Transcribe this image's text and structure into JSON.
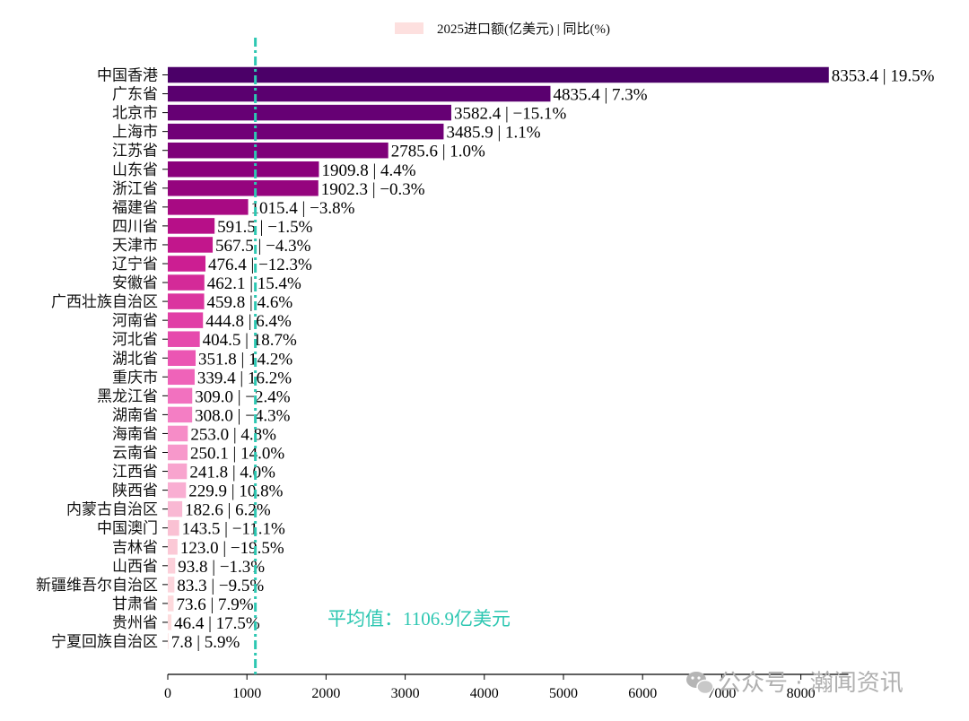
{
  "chart_data": {
    "type": "bar",
    "orientation": "horizontal",
    "title": "",
    "xlabel": "",
    "ylabel": "",
    "legend": {
      "label": "2025进口额(亿美元) | 同比(%)",
      "position": "top-center"
    },
    "xlim": [
      0,
      8600
    ],
    "xticks": [
      0,
      1000,
      2000,
      3000,
      4000,
      5000,
      6000,
      7000,
      8000
    ],
    "grid": false,
    "categories": [
      "中国香港",
      "广东省",
      "北京市",
      "上海市",
      "江苏省",
      "山东省",
      "浙江省",
      "福建省",
      "四川省",
      "天津市",
      "辽宁省",
      "安徽省",
      "广西壮族自治区",
      "河南省",
      "河北省",
      "湖北省",
      "重庆市",
      "黑龙江省",
      "湖南省",
      "海南省",
      "云南省",
      "江西省",
      "陕西省",
      "内蒙古自治区",
      "中国澳门",
      "吉林省",
      "山西省",
      "新疆维吾尔自治区",
      "甘肃省",
      "贵州省",
      "宁夏回族自治区"
    ],
    "values": [
      8353.4,
      4835.4,
      3582.4,
      3485.9,
      2785.6,
      1909.8,
      1902.3,
      1015.4,
      591.5,
      567.5,
      476.4,
      462.1,
      459.8,
      444.8,
      404.5,
      351.8,
      339.4,
      309.0,
      308.0,
      253.0,
      250.1,
      241.8,
      229.9,
      182.6,
      143.5,
      123.0,
      93.8,
      83.3,
      73.6,
      46.4,
      7.8
    ],
    "value_labels": [
      "8353.4 | 19.5%",
      "4835.4 | 7.3%",
      "3582.4 | −15.1%",
      "3485.9 | 1.1%",
      "2785.6 | 1.0%",
      "1909.8 | 4.4%",
      "1902.3 | −0.3%",
      "1015.4 | −3.8%",
      "591.5 | −1.5%",
      "567.5 | −4.3%",
      "476.4 | −12.3%",
      "462.1 | 15.4%",
      "459.8 | 4.6%",
      "444.8 | 6.4%",
      "404.5 | 18.7%",
      "351.8 | 14.2%",
      "339.4 | 16.2%",
      "309.0 | −2.4%",
      "308.0 | −4.3%",
      "253.0 | 4.8%",
      "250.1 | 14.0%",
      "241.8 | 4.0%",
      "229.9 | 10.8%",
      "182.6 | 6.2%",
      "143.5 | −11.1%",
      "123.0 | −19.5%",
      "93.8 | −1.3%",
      "83.3 | −9.5%",
      "73.6 | 7.9%",
      "46.4 | 17.5%",
      "7.8 | 5.9%"
    ],
    "yoy_percent": [
      19.5,
      7.3,
      -15.1,
      1.1,
      1.0,
      4.4,
      -0.3,
      -3.8,
      -1.5,
      -4.3,
      -12.3,
      15.4,
      4.6,
      6.4,
      18.7,
      14.2,
      16.2,
      -2.4,
      -4.3,
      4.8,
      14.0,
      4.0,
      10.8,
      6.2,
      -11.1,
      -19.5,
      -1.3,
      -9.5,
      7.9,
      17.5,
      5.9
    ],
    "colors": [
      "#4b0068",
      "#5a006f",
      "#660074",
      "#710077",
      "#7e0079",
      "#8b007b",
      "#95047e",
      "#a80a83",
      "#b70f88",
      "#c2168c",
      "#cc1e92",
      "#d42a98",
      "#db349f",
      "#e13fa6",
      "#e64aad",
      "#eb56b3",
      "#ef63b9",
      "#f271bf",
      "#f47ec4",
      "#f68cc7",
      "#f798cb",
      "#f8a4ce",
      "#f9aed2",
      "#f9b8d3",
      "#fac1d3",
      "#fbc9d6",
      "#fcd0da",
      "#fcd6dd",
      "#fdd9dc",
      "#fddcdd",
      "#fde0df"
    ],
    "average": {
      "value": 1106.9,
      "label": "平均值：1106.9亿美元",
      "color": "#2ec7b2"
    }
  },
  "watermark": {
    "text": "公众号 · 瀚闻资讯",
    "icon": "wechat-icon"
  }
}
